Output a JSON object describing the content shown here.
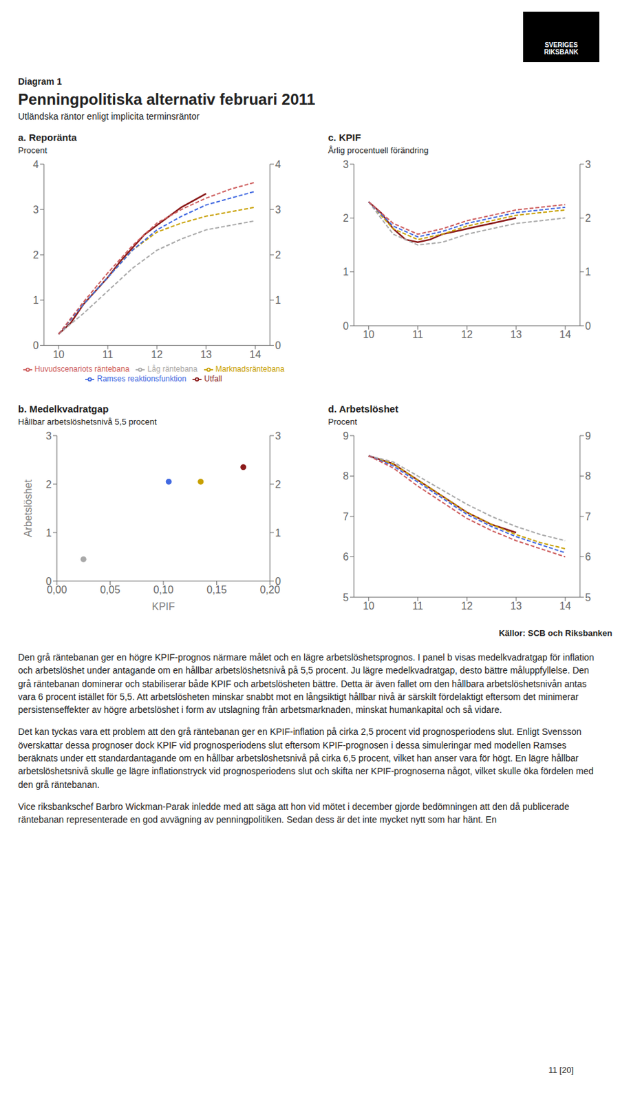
{
  "title": "Penningpolitiska alternativ februari 2011",
  "subtitle": "Utländska räntor enligt implicita terminsräntor",
  "label": "Diagram 1",
  "logo": "SVERIGES\nRIKSBANK",
  "source": "Källor: SCB och Riksbanken",
  "page": "11 [20]",
  "body": [
    "Den grå räntebanan ger en högre KPIF-prognos närmare målet och en lägre arbetslöshetsprognos. I panel b visas medelkvadratgap för inflation och arbetslöshet under antagande om en hållbar arbetslöshetsnivå på 5,5 procent. Ju lägre medelkvadratgap, desto bättre måluppfyllelse. Den grå räntebanan dominerar och stabiliserar både KPIF och arbetslösheten bättre. Detta är även fallet om den hållbara arbetslöshetsnivån antas vara 6 procent istället för 5,5. Att arbetslösheten minskar snabbt mot en långsiktigt hållbar nivå är särskilt fördelaktigt eftersom det minimerar persistenseffekter av högre arbetslöshet i form av utslagning från arbetsmarknaden, minskat humankapital och så vidare.",
    "Det kan tyckas vara ett problem att den grå räntebanan ger en KPIF-inflation på cirka 2,5 procent vid prognosperiodens slut. Enligt Svensson överskattar dessa prognoser dock KPIF vid prognosperiodens slut eftersom KPIF-prognosen i dessa simuleringar med modellen Ramses beräknats under ett standardantagande om en hållbar arbetslöshetsnivå på cirka 6,5 procent, vilket han anser vara för högt. En lägre hållbar arbetslöshetsnivå skulle ge lägre inflationstryck vid prognosperiodens slut och skifta ner KPIF-prognoserna något, vilket skulle öka fördelen med den grå räntebanan.",
    "Vice riksbankschef Barbro Wickman-Parak inledde med att säga att hon vid mötet i december gjorde bedömningen att den då publicerade räntebanan representerade en god avvägning av penningpolitiken. Sedan dess är det inte mycket nytt som har hänt. En"
  ],
  "chart_data": [
    {
      "type": "line",
      "title": "a. Reporänta",
      "ylabel": "Procent",
      "xlim": [
        9.7,
        14.3
      ],
      "xticks": [
        10,
        11,
        12,
        13,
        14
      ],
      "ylim": [
        0,
        4
      ],
      "yticks": [
        0,
        1,
        2,
        3,
        4
      ],
      "legend": "bottom",
      "series": [
        {
          "name": "Utfall",
          "color": "#8B1A1A",
          "line_style": "solid",
          "x": [
            10.0,
            10.25,
            10.5,
            10.75,
            11.0,
            11.25,
            11.5,
            11.75,
            12.0,
            12.25,
            12.5,
            12.75,
            13.0
          ],
          "values": [
            0.25,
            0.5,
            0.9,
            1.2,
            1.5,
            1.85,
            2.15,
            2.45,
            2.65,
            2.85,
            3.05,
            3.2,
            3.35
          ]
        },
        {
          "name": "Marknadsräntebana",
          "color": "#C8A000",
          "line_style": "dashed",
          "x": [
            10.0,
            10.5,
            11.0,
            11.5,
            12.0,
            12.5,
            13.0,
            13.5,
            14.0
          ],
          "values": [
            0.25,
            0.9,
            1.5,
            2.1,
            2.5,
            2.7,
            2.85,
            2.95,
            3.05
          ]
        },
        {
          "name": "Låg räntebana",
          "color": "#A9A9A9",
          "line_style": "dashed",
          "x": [
            10.0,
            10.5,
            11.0,
            11.5,
            12.0,
            12.5,
            13.0,
            13.5,
            14.0
          ],
          "values": [
            0.25,
            0.7,
            1.2,
            1.7,
            2.1,
            2.35,
            2.55,
            2.65,
            2.75
          ]
        },
        {
          "name": "Ramses reaktionsfunktion",
          "color": "#4169E1",
          "line_style": "dashed",
          "x": [
            10.0,
            10.5,
            11.0,
            11.5,
            12.0,
            12.5,
            13.0,
            13.5,
            14.0
          ],
          "values": [
            0.25,
            0.9,
            1.5,
            2.1,
            2.55,
            2.85,
            3.1,
            3.25,
            3.4
          ]
        },
        {
          "name": "Huvudscenariots räntebana",
          "color": "#CD5C5C",
          "line_style": "dashed",
          "x": [
            10.0,
            10.5,
            11.0,
            11.5,
            12.0,
            12.5,
            13.0,
            13.5,
            14.0
          ],
          "values": [
            0.25,
            0.95,
            1.6,
            2.2,
            2.7,
            3.0,
            3.25,
            3.45,
            3.6
          ]
        }
      ]
    },
    {
      "type": "line",
      "title": "c. KPIF",
      "ylabel": "Årlig procentuell förändring",
      "xlim": [
        9.7,
        14.3
      ],
      "xticks": [
        10,
        11,
        12,
        13,
        14
      ],
      "ylim": [
        0,
        3
      ],
      "yticks": [
        0,
        1,
        2,
        3
      ],
      "series": [
        {
          "name": "Utfall",
          "color": "#8B1A1A",
          "line_style": "solid",
          "x": [
            10.0,
            10.25,
            10.5,
            10.75,
            11.0,
            11.25,
            11.5,
            11.75,
            12.0,
            12.25,
            12.5,
            12.75,
            13.0
          ],
          "values": [
            2.3,
            2.1,
            1.8,
            1.6,
            1.55,
            1.6,
            1.7,
            1.75,
            1.8,
            1.85,
            1.9,
            1.95,
            2.0
          ]
        },
        {
          "name": "Marknadsräntebana",
          "color": "#C8A000",
          "line_style": "dashed",
          "x": [
            10.0,
            10.5,
            11.0,
            11.5,
            12.0,
            12.5,
            13.0,
            13.5,
            14.0
          ],
          "values": [
            2.3,
            1.8,
            1.6,
            1.7,
            1.85,
            1.95,
            2.05,
            2.1,
            2.15
          ]
        },
        {
          "name": "Låg räntebana",
          "color": "#A9A9A9",
          "line_style": "dashed",
          "x": [
            10.0,
            10.5,
            11.0,
            11.5,
            12.0,
            12.5,
            13.0,
            13.5,
            14.0
          ],
          "values": [
            2.3,
            1.7,
            1.5,
            1.55,
            1.7,
            1.8,
            1.9,
            1.95,
            2.0
          ]
        },
        {
          "name": "Ramses reaktionsfunktion",
          "color": "#4169E1",
          "line_style": "dashed",
          "x": [
            10.0,
            10.5,
            11.0,
            11.5,
            12.0,
            12.5,
            13.0,
            13.5,
            14.0
          ],
          "values": [
            2.3,
            1.85,
            1.65,
            1.75,
            1.9,
            2.0,
            2.1,
            2.15,
            2.2
          ]
        },
        {
          "name": "Huvudscenariots räntebana",
          "color": "#CD5C5C",
          "line_style": "dashed",
          "x": [
            10.0,
            10.5,
            11.0,
            11.5,
            12.0,
            12.5,
            13.0,
            13.5,
            14.0
          ],
          "values": [
            2.3,
            1.9,
            1.7,
            1.8,
            1.95,
            2.05,
            2.15,
            2.2,
            2.25
          ]
        }
      ]
    },
    {
      "type": "scatter",
      "title": "b. Medelkvadratgap",
      "subtitle": "Hållbar arbetslöshetsnivå 5,5 procent",
      "xlabel": "KPIF",
      "ylabel": "Arbetslöshet",
      "xlim": [
        0,
        0.2
      ],
      "xticks": [
        {
          "value": 0.0,
          "label": "0,00"
        },
        {
          "value": 0.05,
          "label": "0,05"
        },
        {
          "value": 0.1,
          "label": "0,10"
        },
        {
          "value": 0.15,
          "label": "0,15"
        },
        {
          "value": 0.2,
          "label": "0,20"
        }
      ],
      "ylim": [
        0,
        3
      ],
      "yticks": [
        0,
        1,
        2,
        3
      ],
      "x": [
        0.025,
        0.105,
        0.135,
        0.175
      ],
      "values": [
        0.45,
        2.05,
        2.05,
        2.35
      ],
      "colors": [
        "#A9A9A9",
        "#4169E1",
        "#C8A000",
        "#8B1A1A"
      ]
    },
    {
      "type": "line",
      "title": "d. Arbetslöshet",
      "ylabel": "Procent",
      "xlim": [
        9.7,
        14.3
      ],
      "xticks": [
        10,
        11,
        12,
        13,
        14
      ],
      "ylim": [
        5,
        9
      ],
      "yticks": [
        5,
        6,
        7,
        8,
        9
      ],
      "series": [
        {
          "name": "Utfall",
          "color": "#8B1A1A",
          "line_style": "solid",
          "x": [
            10.0,
            10.25,
            10.5,
            10.75,
            11.0,
            11.25,
            11.5,
            11.75,
            12.0,
            12.25,
            12.5,
            12.75,
            13.0
          ],
          "values": [
            8.5,
            8.4,
            8.3,
            8.1,
            7.9,
            7.7,
            7.5,
            7.3,
            7.1,
            6.95,
            6.8,
            6.7,
            6.6
          ]
        },
        {
          "name": "Marknadsräntebana",
          "color": "#C8A000",
          "line_style": "dashed",
          "x": [
            10.0,
            10.5,
            11.0,
            11.5,
            12.0,
            12.5,
            13.0,
            13.5,
            14.0
          ],
          "values": [
            8.5,
            8.3,
            7.9,
            7.5,
            7.1,
            6.8,
            6.55,
            6.35,
            6.2
          ]
        },
        {
          "name": "Låg räntebana",
          "color": "#A9A9A9",
          "line_style": "dashed",
          "x": [
            10.0,
            10.5,
            11.0,
            11.5,
            12.0,
            12.5,
            13.0,
            13.5,
            14.0
          ],
          "values": [
            8.5,
            8.35,
            8.0,
            7.65,
            7.3,
            7.0,
            6.75,
            6.55,
            6.4
          ]
        },
        {
          "name": "Ramses reaktionsfunktion",
          "color": "#4169E1",
          "line_style": "dashed",
          "x": [
            10.0,
            10.5,
            11.0,
            11.5,
            12.0,
            12.5,
            13.0,
            13.5,
            14.0
          ],
          "values": [
            8.5,
            8.25,
            7.85,
            7.45,
            7.05,
            6.75,
            6.5,
            6.3,
            6.1
          ]
        },
        {
          "name": "Huvudscenariots räntebana",
          "color": "#CD5C5C",
          "line_style": "dashed",
          "x": [
            10.0,
            10.5,
            11.0,
            11.5,
            12.0,
            12.5,
            13.0,
            13.5,
            14.0
          ],
          "values": [
            8.5,
            8.2,
            7.75,
            7.35,
            6.95,
            6.65,
            6.4,
            6.2,
            6.0
          ]
        }
      ]
    }
  ]
}
